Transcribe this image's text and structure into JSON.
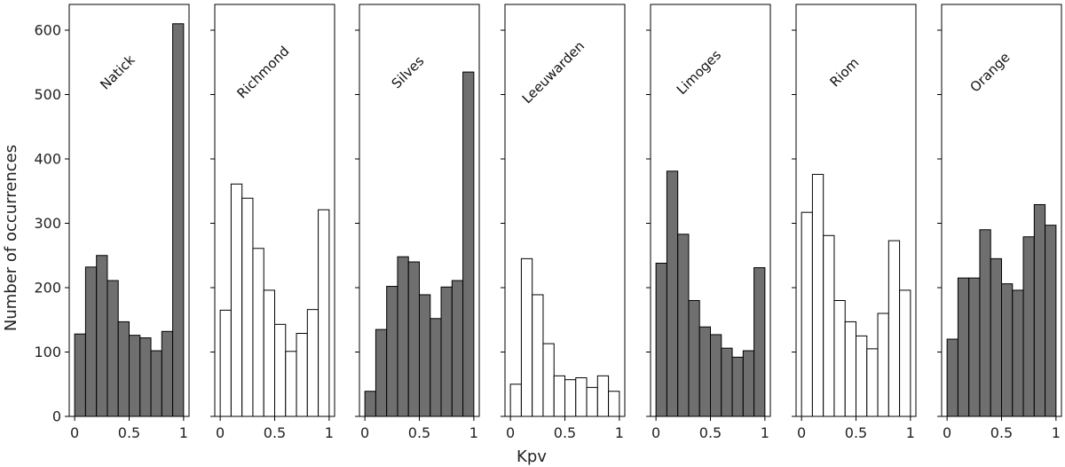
{
  "chart_data": {
    "type": "bar",
    "xlabel": "Kpv",
    "ylabel": "Number of occurrences",
    "ylim": [
      0,
      640
    ],
    "y_ticks": [
      "0",
      "100",
      "200",
      "300",
      "400",
      "500",
      "600"
    ],
    "xlim": [
      -0.05,
      1.05
    ],
    "x_ticks": [
      "0",
      "0.5",
      "1"
    ],
    "bins": [
      0,
      0.1,
      0.2,
      0.3,
      0.4,
      0.5,
      0.6,
      0.7,
      0.8,
      0.9,
      1.0
    ],
    "grid": false,
    "filled_color": "#6f6f6f",
    "empty_color": "#ffffff",
    "edge_color": "#000000",
    "panels": [
      {
        "name": "Natick",
        "filled": true,
        "values": [
          128,
          232,
          250,
          211,
          147,
          126,
          122,
          102,
          132,
          610
        ]
      },
      {
        "name": "Richmond",
        "filled": false,
        "values": [
          165,
          361,
          339,
          261,
          196,
          143,
          101,
          129,
          166,
          321
        ]
      },
      {
        "name": "Silves",
        "filled": true,
        "values": [
          39,
          135,
          202,
          248,
          240,
          189,
          152,
          201,
          211,
          535
        ]
      },
      {
        "name": "Leeuwarden",
        "filled": false,
        "values": [
          50,
          245,
          189,
          113,
          63,
          57,
          60,
          45,
          63,
          39
        ]
      },
      {
        "name": "Limoges",
        "filled": true,
        "values": [
          238,
          381,
          283,
          180,
          139,
          127,
          106,
          92,
          102,
          231
        ]
      },
      {
        "name": "Riom",
        "filled": false,
        "values": [
          317,
          376,
          281,
          180,
          147,
          125,
          105,
          160,
          273,
          196
        ]
      },
      {
        "name": "Orange",
        "filled": true,
        "values": [
          120,
          215,
          215,
          290,
          245,
          206,
          196,
          279,
          329,
          297
        ]
      }
    ]
  }
}
